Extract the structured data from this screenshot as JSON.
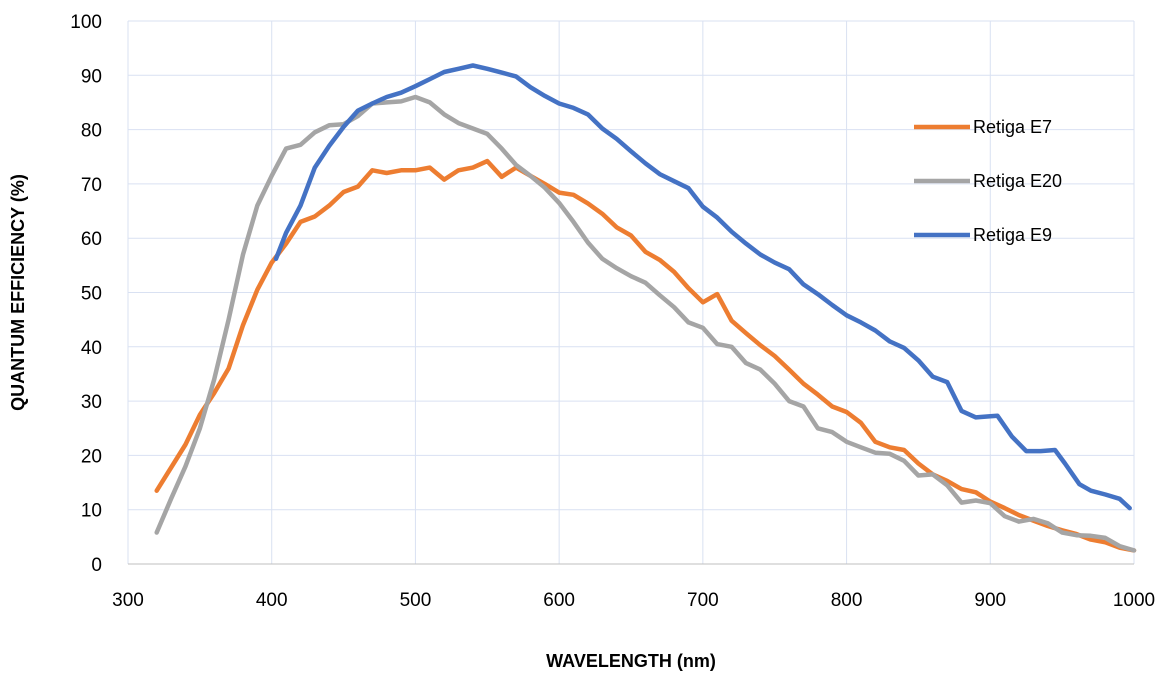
{
  "chart_data": {
    "type": "line",
    "title": "",
    "xlabel": "WAVELENGTH (nm)",
    "ylabel": "QUANTUM EFFICIENCY (%)",
    "xlim": [
      300,
      1000
    ],
    "ylim": [
      0,
      100
    ],
    "xticks": [
      300,
      400,
      500,
      600,
      700,
      800,
      900,
      1000
    ],
    "yticks": [
      0,
      10,
      20,
      30,
      40,
      50,
      60,
      70,
      80,
      90,
      100
    ],
    "grid": true,
    "legend_position": "right",
    "series": [
      {
        "name": "Retiga E7",
        "color": "#ED7D31",
        "points": [
          [
            320,
            13.5
          ],
          [
            340,
            22
          ],
          [
            350,
            27.5
          ],
          [
            360,
            31.5
          ],
          [
            370,
            36
          ],
          [
            380,
            44
          ],
          [
            390,
            50.5
          ],
          [
            400,
            55.5
          ],
          [
            410,
            59
          ],
          [
            420,
            63
          ],
          [
            430,
            64
          ],
          [
            440,
            66
          ],
          [
            450,
            68.5
          ],
          [
            460,
            69.5
          ],
          [
            470,
            72.5
          ],
          [
            480,
            72
          ],
          [
            490,
            72.5
          ],
          [
            500,
            72.5
          ],
          [
            510,
            73
          ],
          [
            520,
            70.8
          ],
          [
            530,
            72.5
          ],
          [
            540,
            73
          ],
          [
            550,
            74.2
          ],
          [
            560,
            71.3
          ],
          [
            570,
            73
          ],
          [
            580,
            71.5
          ],
          [
            590,
            70
          ],
          [
            600,
            68.4
          ],
          [
            610,
            68
          ],
          [
            620,
            66.4
          ],
          [
            630,
            64.5
          ],
          [
            640,
            62
          ],
          [
            650,
            60.5
          ],
          [
            660,
            57.5
          ],
          [
            670,
            56
          ],
          [
            680,
            53.8
          ],
          [
            690,
            50.8
          ],
          [
            700,
            48.2
          ],
          [
            710,
            49.7
          ],
          [
            720,
            44.8
          ],
          [
            730,
            42.5
          ],
          [
            740,
            40.3
          ],
          [
            750,
            38.3
          ],
          [
            760,
            35.8
          ],
          [
            770,
            33.2
          ],
          [
            780,
            31.2
          ],
          [
            790,
            29
          ],
          [
            800,
            28
          ],
          [
            810,
            26
          ],
          [
            820,
            22.5
          ],
          [
            830,
            21.5
          ],
          [
            840,
            21
          ],
          [
            850,
            18.5
          ],
          [
            860,
            16.5
          ],
          [
            870,
            15.3
          ],
          [
            880,
            13.8
          ],
          [
            890,
            13.2
          ],
          [
            900,
            11.5
          ],
          [
            910,
            10.3
          ],
          [
            920,
            9
          ],
          [
            930,
            8
          ],
          [
            940,
            7
          ],
          [
            950,
            6.2
          ],
          [
            960,
            5.5
          ],
          [
            970,
            4.5
          ],
          [
            980,
            4
          ],
          [
            990,
            3
          ],
          [
            1000,
            2.5
          ]
        ]
      },
      {
        "name": "Retiga E20",
        "color": "#A5A5A5",
        "points": [
          [
            320,
            5.8
          ],
          [
            330,
            12
          ],
          [
            340,
            18
          ],
          [
            350,
            25
          ],
          [
            360,
            34
          ],
          [
            370,
            45
          ],
          [
            380,
            57
          ],
          [
            390,
            66
          ],
          [
            400,
            71.5
          ],
          [
            410,
            76.5
          ],
          [
            420,
            77.2
          ],
          [
            430,
            79.5
          ],
          [
            440,
            80.8
          ],
          [
            450,
            81
          ],
          [
            460,
            82.5
          ],
          [
            470,
            84.8
          ],
          [
            480,
            85
          ],
          [
            490,
            85.2
          ],
          [
            500,
            86
          ],
          [
            510,
            85
          ],
          [
            520,
            82.8
          ],
          [
            530,
            81.2
          ],
          [
            540,
            80.2
          ],
          [
            550,
            79.2
          ],
          [
            560,
            76.5
          ],
          [
            570,
            73.5
          ],
          [
            580,
            71.5
          ],
          [
            590,
            69.3
          ],
          [
            600,
            66.5
          ],
          [
            610,
            63
          ],
          [
            620,
            59.2
          ],
          [
            630,
            56.2
          ],
          [
            640,
            54.5
          ],
          [
            650,
            53
          ],
          [
            660,
            51.8
          ],
          [
            670,
            49.5
          ],
          [
            680,
            47.3
          ],
          [
            690,
            44.5
          ],
          [
            700,
            43.5
          ],
          [
            710,
            40.5
          ],
          [
            720,
            40
          ],
          [
            730,
            37
          ],
          [
            740,
            35.8
          ],
          [
            750,
            33.2
          ],
          [
            760,
            30
          ],
          [
            770,
            29
          ],
          [
            780,
            25
          ],
          [
            790,
            24.3
          ],
          [
            800,
            22.5
          ],
          [
            810,
            21.5
          ],
          [
            820,
            20.5
          ],
          [
            830,
            20.3
          ],
          [
            840,
            19
          ],
          [
            850,
            16.3
          ],
          [
            860,
            16.5
          ],
          [
            870,
            14.5
          ],
          [
            880,
            11.3
          ],
          [
            890,
            11.7
          ],
          [
            900,
            11.2
          ],
          [
            910,
            8.8
          ],
          [
            920,
            7.8
          ],
          [
            930,
            8.3
          ],
          [
            940,
            7.5
          ],
          [
            950,
            5.8
          ],
          [
            960,
            5.3
          ],
          [
            970,
            5.2
          ],
          [
            980,
            4.8
          ],
          [
            990,
            3.3
          ],
          [
            1000,
            2.5
          ]
        ]
      },
      {
        "name": "Retiga E9",
        "color": "#4472C4",
        "points": [
          [
            403,
            56.2
          ],
          [
            410,
            61
          ],
          [
            420,
            66
          ],
          [
            430,
            73
          ],
          [
            440,
            77
          ],
          [
            450,
            80.5
          ],
          [
            460,
            83.5
          ],
          [
            470,
            84.8
          ],
          [
            480,
            86
          ],
          [
            490,
            86.8
          ],
          [
            500,
            88
          ],
          [
            510,
            89.3
          ],
          [
            520,
            90.6
          ],
          [
            530,
            91.2
          ],
          [
            540,
            91.8
          ],
          [
            550,
            91.2
          ],
          [
            560,
            90.5
          ],
          [
            570,
            89.8
          ],
          [
            580,
            87.8
          ],
          [
            590,
            86.2
          ],
          [
            600,
            84.8
          ],
          [
            610,
            84
          ],
          [
            620,
            82.8
          ],
          [
            630,
            80.2
          ],
          [
            640,
            78.3
          ],
          [
            650,
            76
          ],
          [
            660,
            73.8
          ],
          [
            670,
            71.8
          ],
          [
            680,
            70.5
          ],
          [
            690,
            69.2
          ],
          [
            700,
            65.8
          ],
          [
            710,
            63.8
          ],
          [
            720,
            61.2
          ],
          [
            730,
            59
          ],
          [
            740,
            57
          ],
          [
            750,
            55.5
          ],
          [
            760,
            54.3
          ],
          [
            770,
            51.5
          ],
          [
            780,
            49.7
          ],
          [
            790,
            47.7
          ],
          [
            800,
            45.8
          ],
          [
            810,
            44.5
          ],
          [
            820,
            43
          ],
          [
            830,
            41
          ],
          [
            840,
            39.8
          ],
          [
            850,
            37.5
          ],
          [
            860,
            34.5
          ],
          [
            870,
            33.5
          ],
          [
            880,
            28.2
          ],
          [
            890,
            27
          ],
          [
            900,
            27.2
          ],
          [
            905,
            27.3
          ],
          [
            915,
            23.5
          ],
          [
            925,
            20.8
          ],
          [
            935,
            20.8
          ],
          [
            945,
            21
          ],
          [
            952,
            18.5
          ],
          [
            962,
            14.7
          ],
          [
            970,
            13.5
          ],
          [
            980,
            12.8
          ],
          [
            990,
            12
          ],
          [
            997,
            10.3
          ]
        ]
      }
    ]
  }
}
